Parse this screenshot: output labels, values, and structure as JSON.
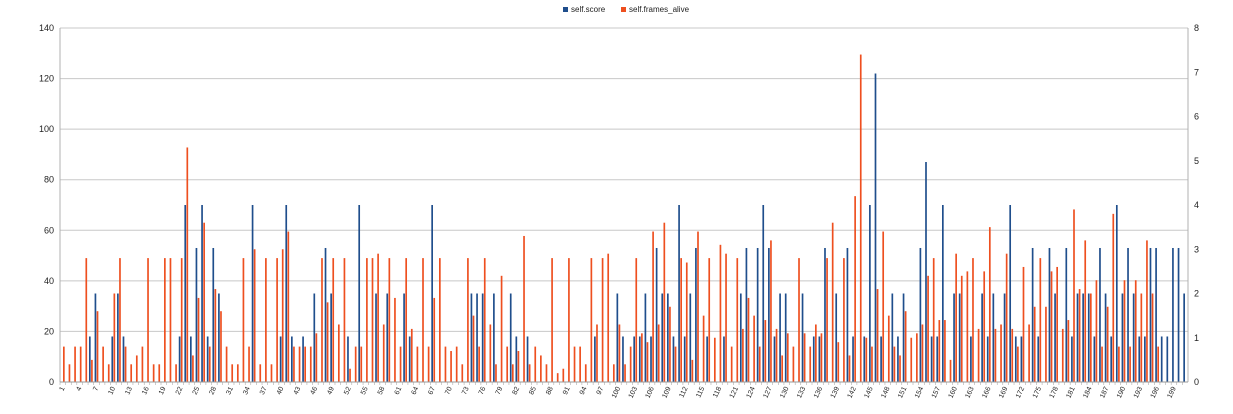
{
  "chart_data": {
    "type": "bar",
    "title": "",
    "xlabel": "",
    "ylabel": "",
    "grid": true,
    "legend_position": "top-center",
    "y_left": {
      "min": 0,
      "max": 140,
      "step": 20,
      "ticks": [
        "0",
        "20",
        "40",
        "60",
        "80",
        "100",
        "120",
        "140"
      ]
    },
    "y_right": {
      "min": 0,
      "max": 8,
      "step": 1,
      "ticks": [
        "0",
        "1",
        "2",
        "3",
        "4",
        "5",
        "6",
        "7",
        "8"
      ]
    },
    "x_tick_labels": [
      "1",
      "4",
      "7",
      "10",
      "13",
      "16",
      "19",
      "22",
      "25",
      "28",
      "31",
      "34",
      "37",
      "40",
      "43",
      "46",
      "49",
      "52",
      "55",
      "58",
      "61",
      "64",
      "67",
      "70",
      "73",
      "76",
      "79",
      "82",
      "85",
      "88",
      "91",
      "94",
      "97",
      "100",
      "103",
      "106",
      "109",
      "112",
      "115",
      "118",
      "121",
      "124",
      "127",
      "130",
      "133",
      "136",
      "139",
      "142",
      "145",
      "148",
      "151",
      "154",
      "157",
      "160",
      "163",
      "166",
      "169",
      "172",
      "175",
      "178",
      "181",
      "184",
      "187",
      "190",
      "193",
      "196",
      "199"
    ],
    "series": [
      {
        "name": "self.score",
        "color": "#1f4e8c",
        "axis": "left",
        "values": [
          0,
          0,
          0,
          0,
          0,
          18,
          35,
          0,
          0,
          18,
          35,
          18,
          0,
          0,
          0,
          0,
          0,
          0,
          0,
          0,
          0,
          18,
          70,
          18,
          53,
          70,
          18,
          53,
          35,
          0,
          0,
          0,
          0,
          0,
          70,
          0,
          0,
          0,
          0,
          18,
          70,
          18,
          0,
          18,
          0,
          35,
          0,
          53,
          35,
          0,
          0,
          18,
          0,
          70,
          0,
          0,
          35,
          0,
          35,
          0,
          0,
          35,
          18,
          0,
          0,
          0,
          70,
          0,
          0,
          0,
          0,
          0,
          0,
          35,
          35,
          35,
          0,
          35,
          0,
          0,
          35,
          18,
          0,
          18,
          0,
          0,
          0,
          0,
          0,
          0,
          0,
          0,
          0,
          0,
          0,
          18,
          0,
          0,
          0,
          35,
          18,
          0,
          18,
          18,
          35,
          18,
          53,
          35,
          35,
          18,
          70,
          18,
          35,
          53,
          0,
          18,
          0,
          0,
          18,
          0,
          0,
          35,
          53,
          0,
          53,
          70,
          53,
          18,
          35,
          35,
          0,
          0,
          35,
          0,
          18,
          18,
          53,
          0,
          35,
          0,
          53,
          18,
          0,
          18,
          70,
          122,
          18,
          0,
          35,
          18,
          35,
          0,
          0,
          53,
          87,
          18,
          18,
          70,
          0,
          35,
          35,
          0,
          18,
          0,
          35,
          18,
          35,
          0,
          35,
          70,
          18,
          18,
          0,
          53,
          18,
          0,
          53,
          35,
          0,
          53,
          18,
          35,
          35,
          35,
          18,
          53,
          35,
          18,
          70,
          35,
          53,
          35,
          18,
          18,
          53,
          53,
          18,
          18,
          53,
          53,
          35
        ]
      },
      {
        "name": "self.frames_alive",
        "color": "#ee4f1f",
        "axis": "right",
        "values": [
          0.8,
          0.4,
          0.8,
          0.8,
          2.8,
          0.5,
          1.6,
          0.8,
          0.4,
          2.0,
          2.8,
          0.8,
          0.4,
          0.6,
          0.8,
          2.8,
          0.4,
          0.4,
          2.8,
          2.8,
          0.4,
          2.8,
          5.3,
          0.6,
          1.9,
          3.6,
          0.8,
          2.1,
          1.6,
          0.8,
          0.4,
          0.4,
          2.8,
          0.8,
          3.0,
          0.4,
          2.8,
          0.4,
          2.8,
          3.0,
          3.4,
          0.8,
          0.8,
          0.8,
          0.8,
          1.1,
          2.8,
          1.8,
          2.8,
          1.3,
          2.8,
          0.3,
          0.8,
          0.8,
          2.8,
          2.8,
          2.9,
          1.3,
          2.8,
          1.9,
          0.8,
          2.8,
          1.2,
          0.8,
          2.8,
          0.8,
          1.9,
          2.8,
          0.8,
          0.7,
          0.8,
          0.4,
          2.8,
          1.5,
          0.8,
          2.8,
          1.3,
          0.4,
          2.4,
          0.8,
          0.4,
          0.7,
          3.3,
          0.4,
          0.8,
          0.6,
          0.4,
          2.8,
          0.2,
          0.3,
          2.8,
          0.8,
          0.8,
          0.4,
          2.8,
          1.3,
          2.8,
          2.9,
          0.4,
          1.3,
          0.4,
          0.8,
          2.8,
          1.1,
          0.9,
          3.4,
          1.3,
          3.6,
          1.7,
          0.8,
          2.8,
          2.7,
          0.5,
          3.4,
          1.5,
          2.8,
          1.0,
          3.1,
          2.9,
          0.8,
          2.8,
          1.2,
          1.9,
          1.5,
          0.8,
          1.4,
          3.2,
          1.2,
          0.6,
          1.1,
          0.8,
          2.8,
          1.1,
          0.8,
          1.3,
          1.1,
          2.8,
          3.6,
          0.9,
          2.8,
          0.6,
          4.2,
          7.4,
          1.0,
          0.8,
          2.1,
          3.4,
          1.5,
          0.8,
          0.6,
          1.6,
          1.0,
          1.1,
          1.3,
          2.4,
          2.8,
          1.4,
          1.4,
          0.5,
          2.9,
          2.4,
          2.5,
          2.8,
          1.2,
          2.5,
          3.5,
          1.2,
          1.3,
          2.9,
          1.2,
          0.8,
          2.6,
          1.3,
          1.7,
          2.8,
          1.7,
          2.5,
          2.6,
          1.2,
          1.4,
          3.9,
          2.1,
          3.2,
          2.0,
          2.3,
          0.8,
          1.7,
          3.8,
          0.8,
          2.3,
          0.8,
          2.3,
          2.0,
          3.2,
          2.0,
          0.8
        ]
      }
    ]
  }
}
